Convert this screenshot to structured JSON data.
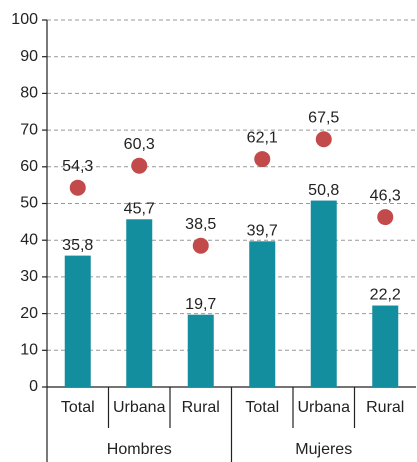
{
  "chart_data": {
    "type": "bar",
    "categories": [
      "Total",
      "Urbana",
      "Rural",
      "Total",
      "Urbana",
      "Rural"
    ],
    "groups": [
      "Hombres",
      "Mujeres"
    ],
    "series": [
      {
        "type": "bar",
        "color": "#138e9e",
        "values": [
          35.8,
          45.7,
          19.7,
          39.7,
          50.8,
          22.2
        ],
        "value_labels": [
          "35,8",
          "45,7",
          "19,7",
          "39,7",
          "50,8",
          "22,2"
        ]
      },
      {
        "type": "scatter",
        "color": "#c34a4a",
        "values": [
          54.3,
          60.3,
          38.5,
          62.1,
          67.5,
          46.3
        ],
        "value_labels": [
          "54,3",
          "60,3",
          "38,5",
          "62,1",
          "67,5",
          "46,3"
        ]
      }
    ],
    "ylim": [
      0,
      100
    ],
    "yticks": [
      0,
      10,
      20,
      30,
      40,
      50,
      60,
      70,
      80,
      90,
      100
    ],
    "grid": true
  }
}
